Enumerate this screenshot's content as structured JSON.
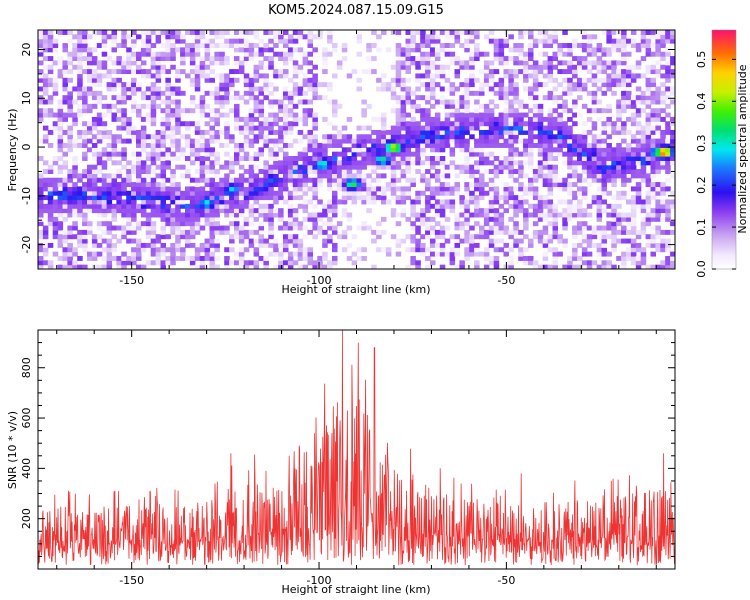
{
  "title": "KOM5.2024.087.15.09.G15",
  "colors": {
    "line": "#ee3333",
    "axis": "#000000"
  },
  "chart_data": [
    {
      "type": "heatmap",
      "xlabel": "Height of straight line (km)",
      "ylabel": "Frequency (Hz)",
      "xlim": [
        -175,
        -5
      ],
      "ylim": [
        -25,
        24
      ],
      "xticks": [
        -150,
        -100,
        -50
      ],
      "yticks": [
        -20,
        -10,
        0,
        10,
        20
      ],
      "colorbar": {
        "label": "Normalized spectral amplitude",
        "range": [
          0.0,
          0.57
        ],
        "ticks": [
          0.0,
          0.1,
          0.2,
          0.3,
          0.4,
          0.5
        ]
      },
      "ridge": [
        [
          -175,
          -9.5
        ],
        [
          -150,
          -10.5
        ],
        [
          -135,
          -12
        ],
        [
          -120,
          -9
        ],
        [
          -110,
          -6
        ],
        [
          -100,
          -3
        ],
        [
          -90,
          -1
        ],
        [
          -80,
          0.5
        ],
        [
          -72,
          2.5
        ],
        [
          -60,
          3.5
        ],
        [
          -45,
          4
        ],
        [
          -35,
          2
        ],
        [
          -25,
          -4
        ],
        [
          -15,
          -3
        ],
        [
          -5,
          0
        ]
      ],
      "peaks": [
        {
          "x": -130,
          "y": -11.5,
          "v": 0.3
        },
        {
          "x": -123,
          "y": -8.5,
          "v": 0.28
        },
        {
          "x": -99,
          "y": -3.5,
          "v": 0.32
        },
        {
          "x": -91,
          "y": -7.5,
          "v": 0.36
        },
        {
          "x": -83,
          "y": -2.5,
          "v": 0.33
        },
        {
          "x": -80,
          "y": 0,
          "v": 0.45
        },
        {
          "x": -72,
          "y": 2.5,
          "v": 0.24
        },
        {
          "x": -27,
          "y": -1,
          "v": 0.2
        },
        {
          "x": -10,
          "y": -1,
          "v": 0.3
        },
        {
          "x": -8,
          "y": -1,
          "v": 0.55
        }
      ]
    },
    {
      "type": "line",
      "xlabel": "Height of straight line (km)",
      "ylabel": "SNR (10 * v/v)",
      "xlim": [
        -175,
        -5
      ],
      "ylim": [
        0,
        950
      ],
      "xticks": [
        -150,
        -100,
        -50
      ],
      "yticks": [
        200,
        400,
        600,
        800
      ],
      "series": [
        {
          "envelope": [
            [
              -175,
              120,
              320
            ],
            [
              -150,
              120,
              330
            ],
            [
              -130,
              130,
              350
            ],
            [
              -120,
              140,
              460
            ],
            [
              -110,
              160,
              450
            ],
            [
              -100,
              190,
              650
            ],
            [
              -95,
              250,
              950
            ],
            [
              -90,
              220,
              880
            ],
            [
              -85,
              190,
              720
            ],
            [
              -80,
              170,
              560
            ],
            [
              -70,
              150,
              420
            ],
            [
              -60,
              140,
              350
            ],
            [
              -50,
              130,
              330
            ],
            [
              -40,
              130,
              330
            ],
            [
              -30,
              130,
              360
            ],
            [
              -20,
              140,
              380
            ],
            [
              -10,
              150,
              460
            ],
            [
              -5,
              150,
              360
            ]
          ],
          "peaks": [
            [
              -93.8,
              950
            ],
            [
              -89.5,
              900
            ],
            [
              -85.2,
              880
            ],
            [
              -123.5,
              460
            ],
            [
              -108,
              450
            ],
            [
              -46,
              380
            ],
            [
              -8,
              460
            ]
          ]
        }
      ]
    }
  ]
}
